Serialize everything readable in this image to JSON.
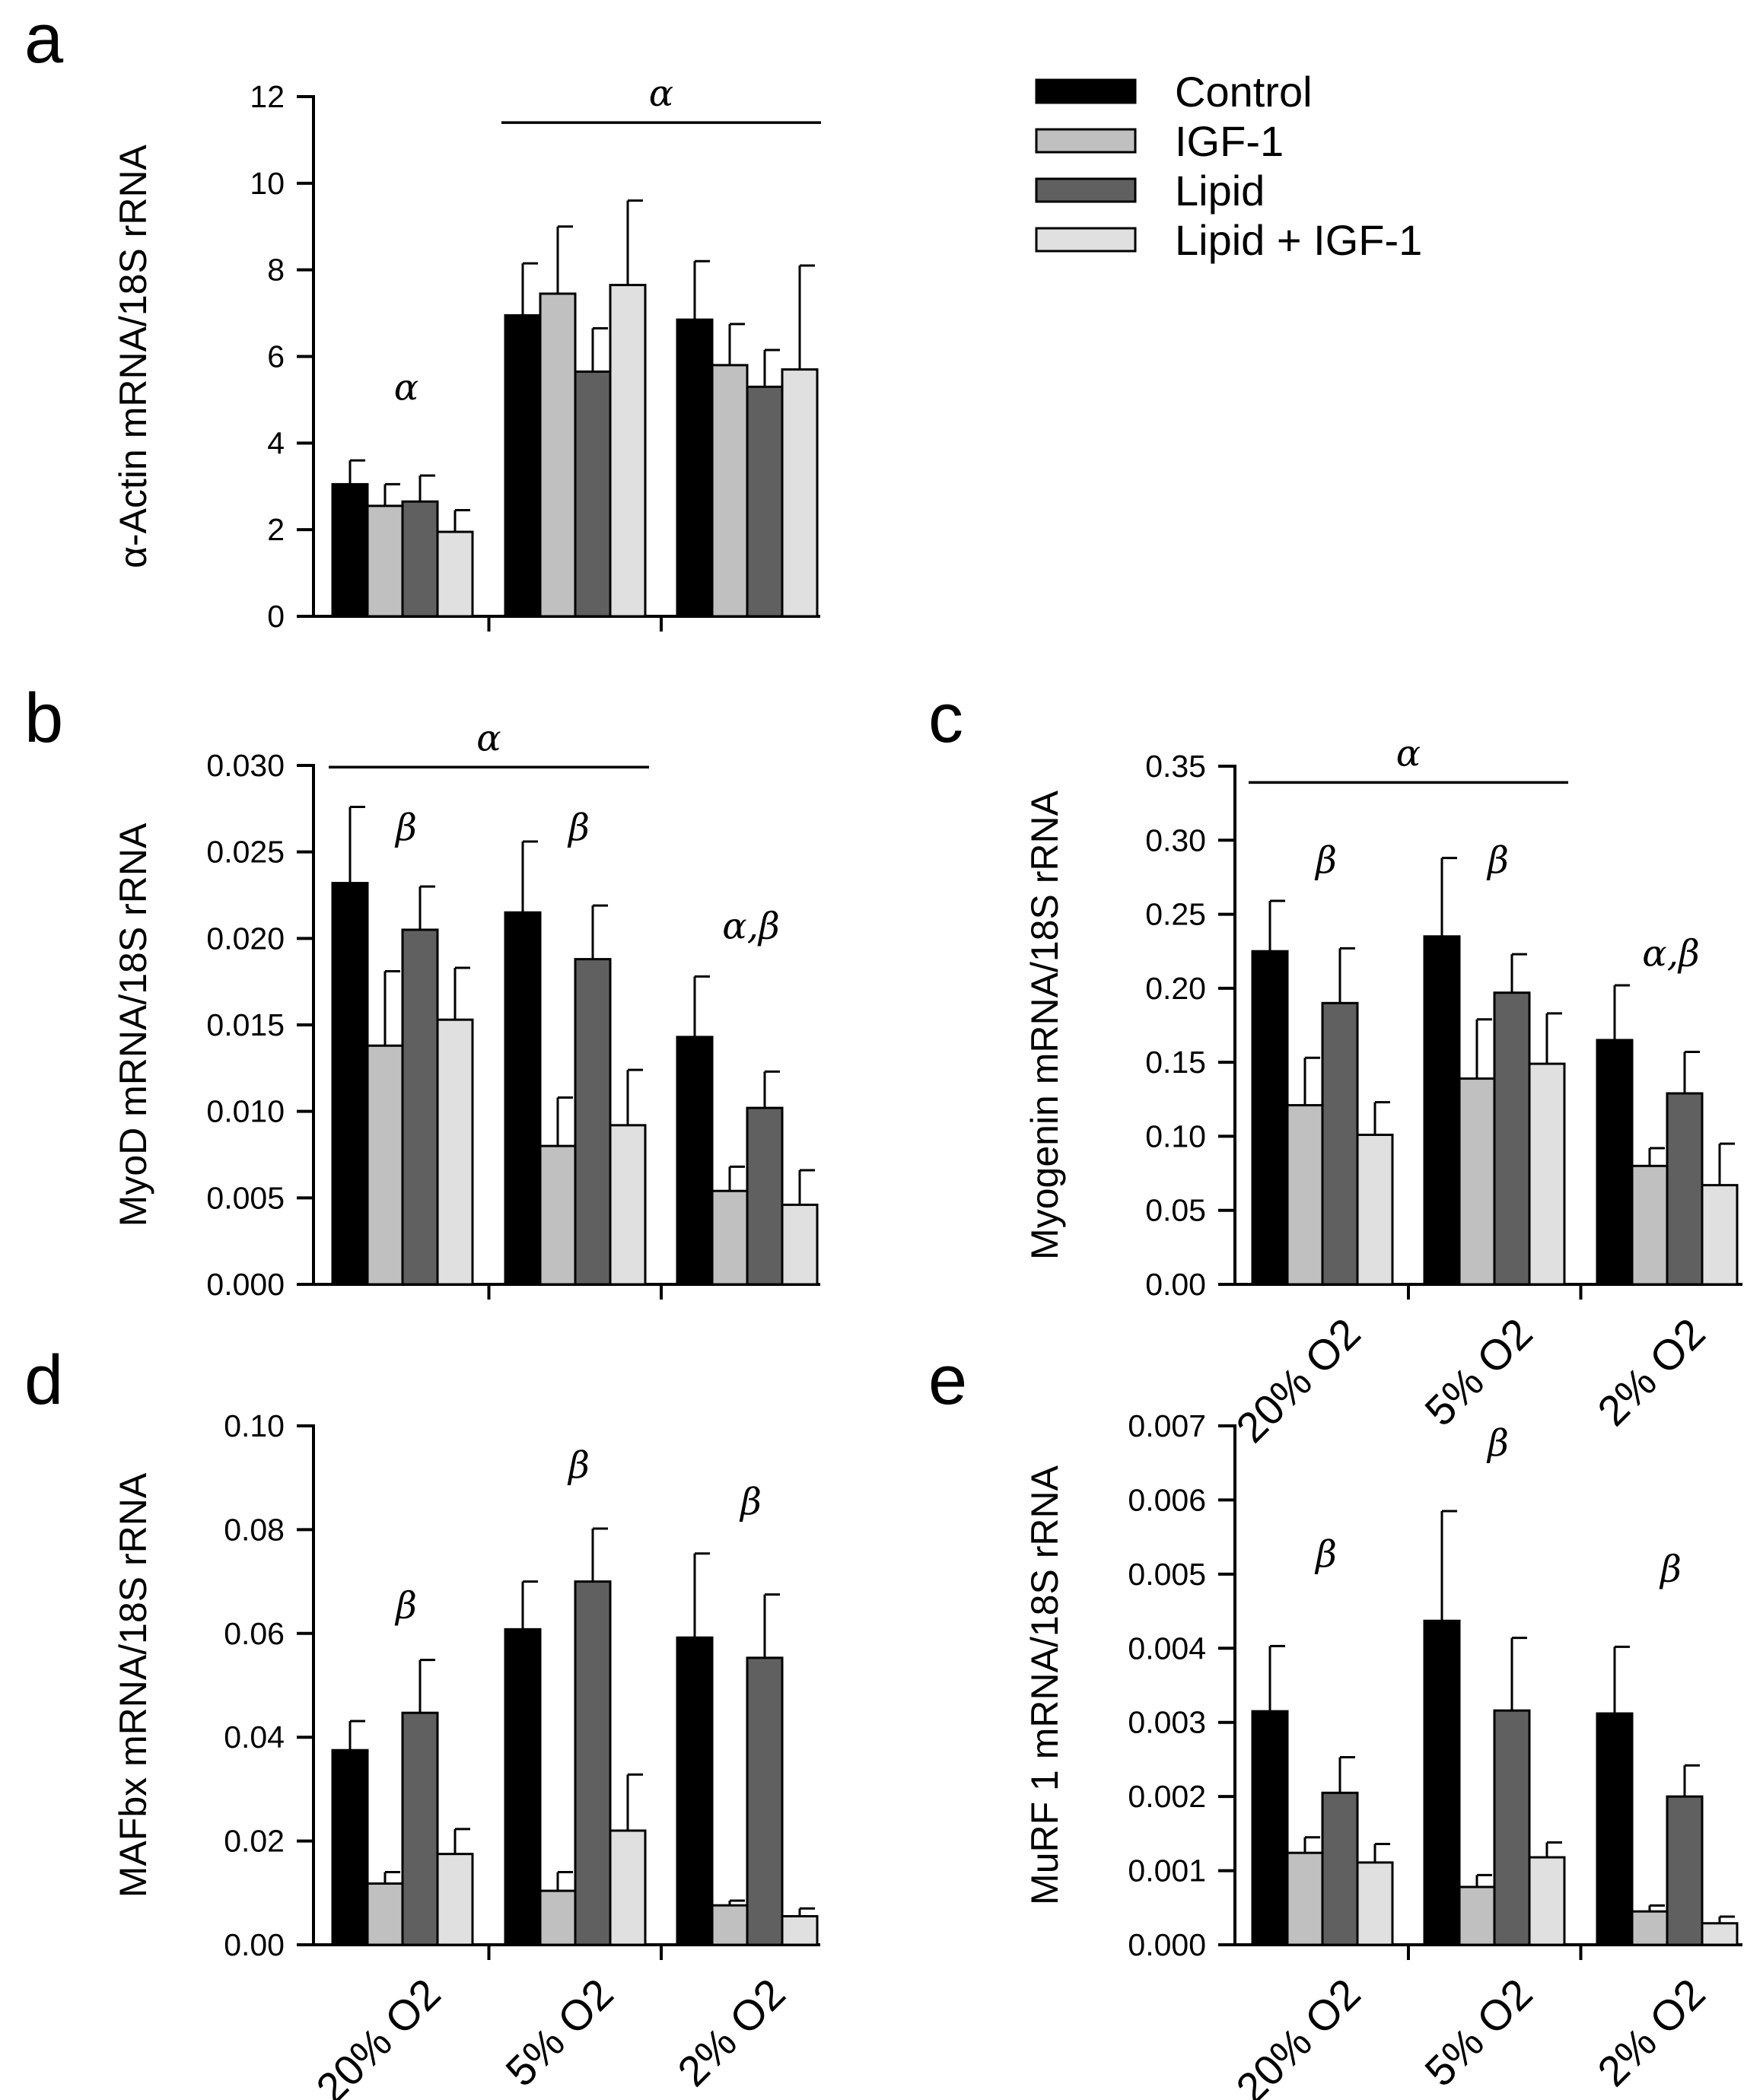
{
  "legend": [
    {
      "label": "Control",
      "color": "#000000"
    },
    {
      "label": "IGF-1",
      "color": "#c0c0c0"
    },
    {
      "label": "Lipid",
      "color": "#606060"
    },
    {
      "label": "Lipid + IGF-1",
      "color": "#e0e0e0"
    }
  ],
  "series_colors": [
    "#000000",
    "#c0c0c0",
    "#606060",
    "#e0e0e0"
  ],
  "chart_data": [
    {
      "panel": "a",
      "type": "bar",
      "ylabel": "α-Actin mRNA/18S rRNA",
      "ylim": [
        0,
        12
      ],
      "ytick_values": [
        0,
        2,
        4,
        6,
        8,
        10,
        12
      ],
      "ytick_labels": [
        "0",
        "2",
        "4",
        "6",
        "8",
        "10",
        "12"
      ],
      "categories": [
        "20% O2",
        "5% O2",
        "2% O2"
      ],
      "show_xlabels": false,
      "series": [
        {
          "name": "Control",
          "values": [
            3.05,
            6.95,
            6.85
          ],
          "errors": [
            0.55,
            1.2,
            1.35
          ]
        },
        {
          "name": "IGF-1",
          "values": [
            2.55,
            7.45,
            5.8
          ],
          "errors": [
            0.5,
            1.55,
            0.95
          ]
        },
        {
          "name": "Lipid",
          "values": [
            2.65,
            5.65,
            5.3
          ],
          "errors": [
            0.6,
            1.0,
            0.85
          ]
        },
        {
          "name": "Lipid + IGF-1",
          "values": [
            1.95,
            7.65,
            5.7
          ],
          "errors": [
            0.5,
            1.95,
            2.4
          ]
        }
      ],
      "annotations": [
        {
          "text": "α",
          "group": 0,
          "at_value": 5.0
        },
        {
          "text": "α",
          "line_groups": [
            1,
            2
          ],
          "at_value": 11.4
        }
      ]
    },
    {
      "panel": "b",
      "type": "bar",
      "ylabel": "MyoD mRNA/18S rRNA",
      "ylim": [
        0,
        0.03
      ],
      "ytick_values": [
        0,
        0.005,
        0.01,
        0.015,
        0.02,
        0.025,
        0.03
      ],
      "ytick_labels": [
        "0.000",
        "0.005",
        "0.010",
        "0.015",
        "0.020",
        "0.025",
        "0.030"
      ],
      "categories": [
        "20% O2",
        "5% O2",
        "2% O2"
      ],
      "show_xlabels": false,
      "series": [
        {
          "name": "Control",
          "values": [
            0.0232,
            0.0215,
            0.0143
          ],
          "errors": [
            0.0044,
            0.0041,
            0.0035
          ]
        },
        {
          "name": "IGF-1",
          "values": [
            0.0138,
            0.008,
            0.0054
          ],
          "errors": [
            0.0043,
            0.0028,
            0.0014
          ]
        },
        {
          "name": "Lipid",
          "values": [
            0.0205,
            0.0188,
            0.0102
          ],
          "errors": [
            0.0025,
            0.0031,
            0.0021
          ]
        },
        {
          "name": "Lipid + IGF-1",
          "values": [
            0.0153,
            0.0092,
            0.0046
          ],
          "errors": [
            0.003,
            0.0032,
            0.002
          ]
        }
      ],
      "annotations": [
        {
          "text": "α",
          "line_groups": [
            0,
            1
          ],
          "at_value": 0.0299
        },
        {
          "text": "β",
          "group": 0,
          "at_value": 0.0257
        },
        {
          "text": "β",
          "group": 1,
          "at_value": 0.0257
        },
        {
          "text": "α,β",
          "group": 2,
          "at_value": 0.02
        }
      ]
    },
    {
      "panel": "c",
      "type": "bar",
      "ylabel": "Myogenin mRNA/18S rRNA",
      "ylim": [
        0,
        0.35
      ],
      "ytick_values": [
        0,
        0.05,
        0.1,
        0.15,
        0.2,
        0.25,
        0.3,
        0.35
      ],
      "ytick_labels": [
        "0.00",
        "0.05",
        "0.10",
        "0.15",
        "0.20",
        "0.25",
        "0.30",
        "0.35"
      ],
      "categories": [
        "20% O2",
        "5% O2",
        "2% O2"
      ],
      "show_xlabels": true,
      "series": [
        {
          "name": "Control",
          "values": [
            0.225,
            0.235,
            0.165
          ],
          "errors": [
            0.034,
            0.053,
            0.037
          ]
        },
        {
          "name": "IGF-1",
          "values": [
            0.121,
            0.139,
            0.08
          ],
          "errors": [
            0.032,
            0.04,
            0.012
          ]
        },
        {
          "name": "Lipid",
          "values": [
            0.19,
            0.197,
            0.129
          ],
          "errors": [
            0.037,
            0.026,
            0.028
          ]
        },
        {
          "name": "Lipid + IGF-1",
          "values": [
            0.101,
            0.149,
            0.067
          ],
          "errors": [
            0.022,
            0.034,
            0.028
          ]
        }
      ],
      "annotations": [
        {
          "text": "α",
          "line_groups": [
            0,
            1
          ],
          "at_value": 0.339
        },
        {
          "text": "β",
          "group": 0,
          "at_value": 0.278
        },
        {
          "text": "β",
          "group": 1,
          "at_value": 0.278
        },
        {
          "text": "α,β",
          "group": 2,
          "at_value": 0.215
        }
      ]
    },
    {
      "panel": "d",
      "type": "bar",
      "ylabel": "MAFbx mRNA/18S rRNA",
      "ylim": [
        0,
        0.1
      ],
      "ytick_values": [
        0,
        0.02,
        0.04,
        0.06,
        0.08,
        0.1
      ],
      "ytick_labels": [
        "0.00",
        "0.02",
        "0.04",
        "0.06",
        "0.08",
        "0.10"
      ],
      "categories": [
        "20% O2",
        "5% O2",
        "2% O2"
      ],
      "show_xlabels": true,
      "series": [
        {
          "name": "Control",
          "values": [
            0.0375,
            0.0608,
            0.0592
          ],
          "errors": [
            0.0056,
            0.0092,
            0.0162
          ]
        },
        {
          "name": "IGF-1",
          "values": [
            0.0118,
            0.0104,
            0.0076
          ],
          "errors": [
            0.0022,
            0.0036,
            0.0009
          ]
        },
        {
          "name": "Lipid",
          "values": [
            0.0447,
            0.07,
            0.0553
          ],
          "errors": [
            0.0102,
            0.0102,
            0.0122
          ]
        },
        {
          "name": "Lipid + IGF-1",
          "values": [
            0.0175,
            0.022,
            0.0055
          ],
          "errors": [
            0.0048,
            0.0108,
            0.0015
          ]
        }
      ],
      "annotations": [
        {
          "text": "β",
          "group": 0,
          "at_value": 0.063
        },
        {
          "text": "β",
          "group": 1,
          "at_value": 0.09
        },
        {
          "text": "β",
          "group": 2,
          "at_value": 0.083
        }
      ]
    },
    {
      "panel": "e",
      "type": "bar",
      "ylabel": "MuRF 1 mRNA/18S rRNA",
      "ylim": [
        0,
        0.007
      ],
      "ytick_values": [
        0,
        0.001,
        0.002,
        0.003,
        0.004,
        0.005,
        0.006,
        0.007
      ],
      "ytick_labels": [
        "0.000",
        "0.001",
        "0.002",
        "0.003",
        "0.004",
        "0.005",
        "0.006",
        "0.007"
      ],
      "categories": [
        "20% O2",
        "5% O2",
        "2% O2"
      ],
      "show_xlabels": true,
      "series": [
        {
          "name": "Control",
          "values": [
            0.00315,
            0.00437,
            0.00312
          ],
          "errors": [
            0.00088,
            0.00148,
            0.0009
          ]
        },
        {
          "name": "IGF-1",
          "values": [
            0.00124,
            0.00078,
            0.00045
          ],
          "errors": [
            0.00021,
            0.00016,
            8e-05
          ]
        },
        {
          "name": "Lipid",
          "values": [
            0.00205,
            0.00316,
            0.002
          ],
          "errors": [
            0.00048,
            0.00098,
            0.00042
          ]
        },
        {
          "name": "Lipid + IGF-1",
          "values": [
            0.00111,
            0.00118,
            0.00029
          ],
          "errors": [
            0.00025,
            0.0002,
            9e-05
          ]
        }
      ],
      "annotations": [
        {
          "text": "β",
          "group": 0,
          "at_value": 0.0051
        },
        {
          "text": "β",
          "group": 1,
          "at_value": 0.0066
        },
        {
          "text": "β",
          "group": 2,
          "at_value": 0.0049
        }
      ]
    }
  ]
}
